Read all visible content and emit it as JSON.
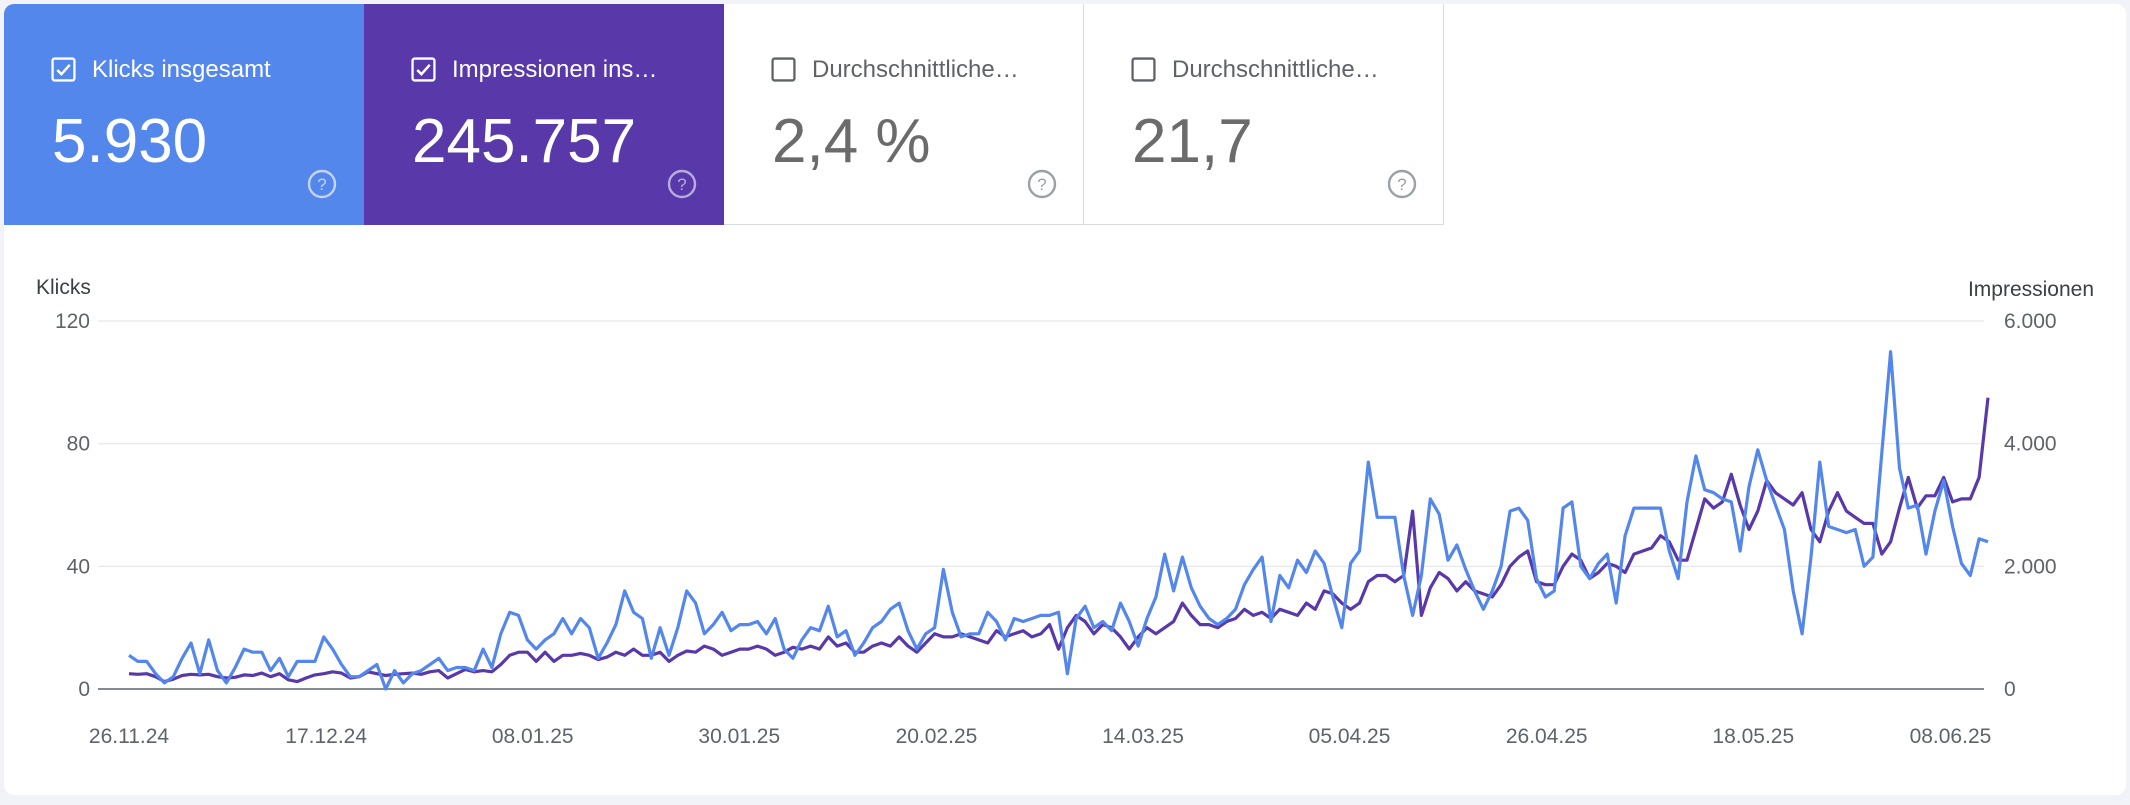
{
  "metrics": [
    {
      "label": "Klicks insgesamt",
      "value": "5.930",
      "checked": true,
      "color": "#5487eb"
    },
    {
      "label": "Impressionen ins…",
      "value": "245.757",
      "checked": true,
      "color": "#5939aa"
    },
    {
      "label": "Durchschnittliche…",
      "value": "2,4 %",
      "checked": false,
      "color": "#ffffff"
    },
    {
      "label": "Durchschnittliche…",
      "value": "21,7",
      "checked": false,
      "color": "#ffffff"
    }
  ],
  "chart_data": {
    "type": "line",
    "ylabel_left": "Klicks",
    "ylabel_right": "Impressionen",
    "ylim_left": [
      0,
      120
    ],
    "ylim_right": [
      0,
      6000
    ],
    "yticks_left": [
      "0",
      "40",
      "80",
      "120"
    ],
    "yticks_right": [
      "0",
      "2.000",
      "4.000",
      "6.000"
    ],
    "xticks": [
      "26.11.24",
      "17.12.24",
      "08.01.25",
      "30.01.25",
      "20.02.25",
      "14.03.25",
      "05.04.25",
      "26.04.25",
      "18.05.25",
      "08.06.25"
    ],
    "x_start": "26.11.24",
    "x_end": "12.06.25",
    "grid": true,
    "series": [
      {
        "name": "Klicks insgesamt",
        "axis": "left",
        "color": "#5487eb",
        "values": [
          11,
          9,
          9,
          5,
          2,
          4,
          10,
          15,
          5,
          16,
          6,
          2,
          7,
          13,
          12,
          12,
          6,
          10,
          4,
          9,
          9,
          9,
          17,
          13,
          8,
          4,
          4,
          6,
          8,
          0,
          6,
          2,
          5,
          6,
          8,
          10,
          6,
          7,
          7,
          6,
          13,
          7,
          18,
          25,
          24,
          16,
          13,
          16,
          18,
          23,
          18,
          23,
          20,
          10,
          15,
          21,
          32,
          25,
          23,
          10,
          20,
          11,
          20,
          32,
          28,
          18,
          21,
          25,
          19,
          21,
          21,
          22,
          18,
          23,
          13,
          10,
          16,
          20,
          19,
          27,
          17,
          19,
          11,
          15,
          20,
          22,
          26,
          28,
          19,
          13,
          18,
          20,
          39,
          25,
          17,
          18,
          18,
          25,
          22,
          16,
          23,
          22,
          23,
          24,
          24,
          25,
          5,
          23,
          27,
          20,
          22,
          19,
          28,
          22,
          14,
          23,
          30,
          44,
          32,
          43,
          33,
          27,
          23,
          21,
          23,
          26,
          34,
          39,
          43,
          22,
          37,
          33,
          42,
          38,
          45,
          41,
          30,
          20,
          41,
          45,
          74,
          56,
          56,
          56,
          37,
          24,
          37,
          62,
          57,
          42,
          47,
          39,
          32,
          26,
          32,
          40,
          58,
          59,
          55,
          36,
          30,
          32,
          59,
          61,
          40,
          36,
          41,
          44,
          28,
          50,
          59,
          59,
          59,
          59,
          45,
          36,
          61,
          76,
          65,
          64,
          62,
          61,
          45,
          66,
          78,
          68,
          60,
          52,
          32,
          18,
          43,
          74,
          53,
          52,
          51,
          52,
          40,
          43,
          77,
          110,
          72,
          59,
          60,
          44,
          58,
          68,
          53,
          41,
          37,
          49,
          48
        ]
      },
      {
        "name": "Impressionen ins…",
        "axis": "right",
        "color": "#5939aa",
        "values": [
          250,
          240,
          250,
          200,
          120,
          160,
          220,
          240,
          230,
          240,
          200,
          180,
          190,
          230,
          220,
          260,
          200,
          250,
          150,
          120,
          180,
          230,
          250,
          280,
          260,
          180,
          200,
          280,
          250,
          220,
          240,
          250,
          260,
          240,
          280,
          300,
          180,
          250,
          320,
          280,
          300,
          280,
          400,
          550,
          600,
          600,
          450,
          600,
          450,
          550,
          550,
          580,
          550,
          480,
          520,
          600,
          550,
          650,
          550,
          550,
          600,
          450,
          550,
          620,
          600,
          700,
          650,
          550,
          600,
          650,
          650,
          700,
          650,
          550,
          600,
          680,
          650,
          700,
          650,
          850,
          700,
          750,
          600,
          600,
          700,
          750,
          700,
          850,
          700,
          600,
          750,
          900,
          850,
          850,
          900,
          850,
          800,
          750,
          950,
          850,
          900,
          950,
          850,
          900,
          1050,
          650,
          1000,
          1200,
          1100,
          900,
          1050,
          1000,
          850,
          650,
          850,
          1000,
          900,
          1000,
          1100,
          1400,
          1200,
          1050,
          1050,
          1000,
          1100,
          1150,
          1300,
          1200,
          1250,
          1150,
          1300,
          1250,
          1200,
          1400,
          1300,
          1600,
          1550,
          1400,
          1300,
          1400,
          1750,
          1850,
          1850,
          1750,
          1850,
          2900,
          1200,
          1650,
          1900,
          1800,
          1600,
          1750,
          1600,
          1550,
          1500,
          1700,
          2000,
          2150,
          2250,
          1750,
          1700,
          1700,
          2000,
          2200,
          2100,
          1800,
          1900,
          2050,
          2000,
          1900,
          2200,
          2250,
          2300,
          2500,
          2400,
          2100,
          2100,
          2600,
          3100,
          2950,
          3050,
          3500,
          3000,
          2600,
          2900,
          3400,
          3200,
          3100,
          3000,
          3200,
          2600,
          2400,
          2900,
          3200,
          2900,
          2800,
          2700,
          2700,
          2200,
          2400,
          2950,
          3450,
          2950,
          3150,
          3150,
          3450,
          3050,
          3100,
          3100,
          3450,
          4750
        ]
      }
    ]
  }
}
